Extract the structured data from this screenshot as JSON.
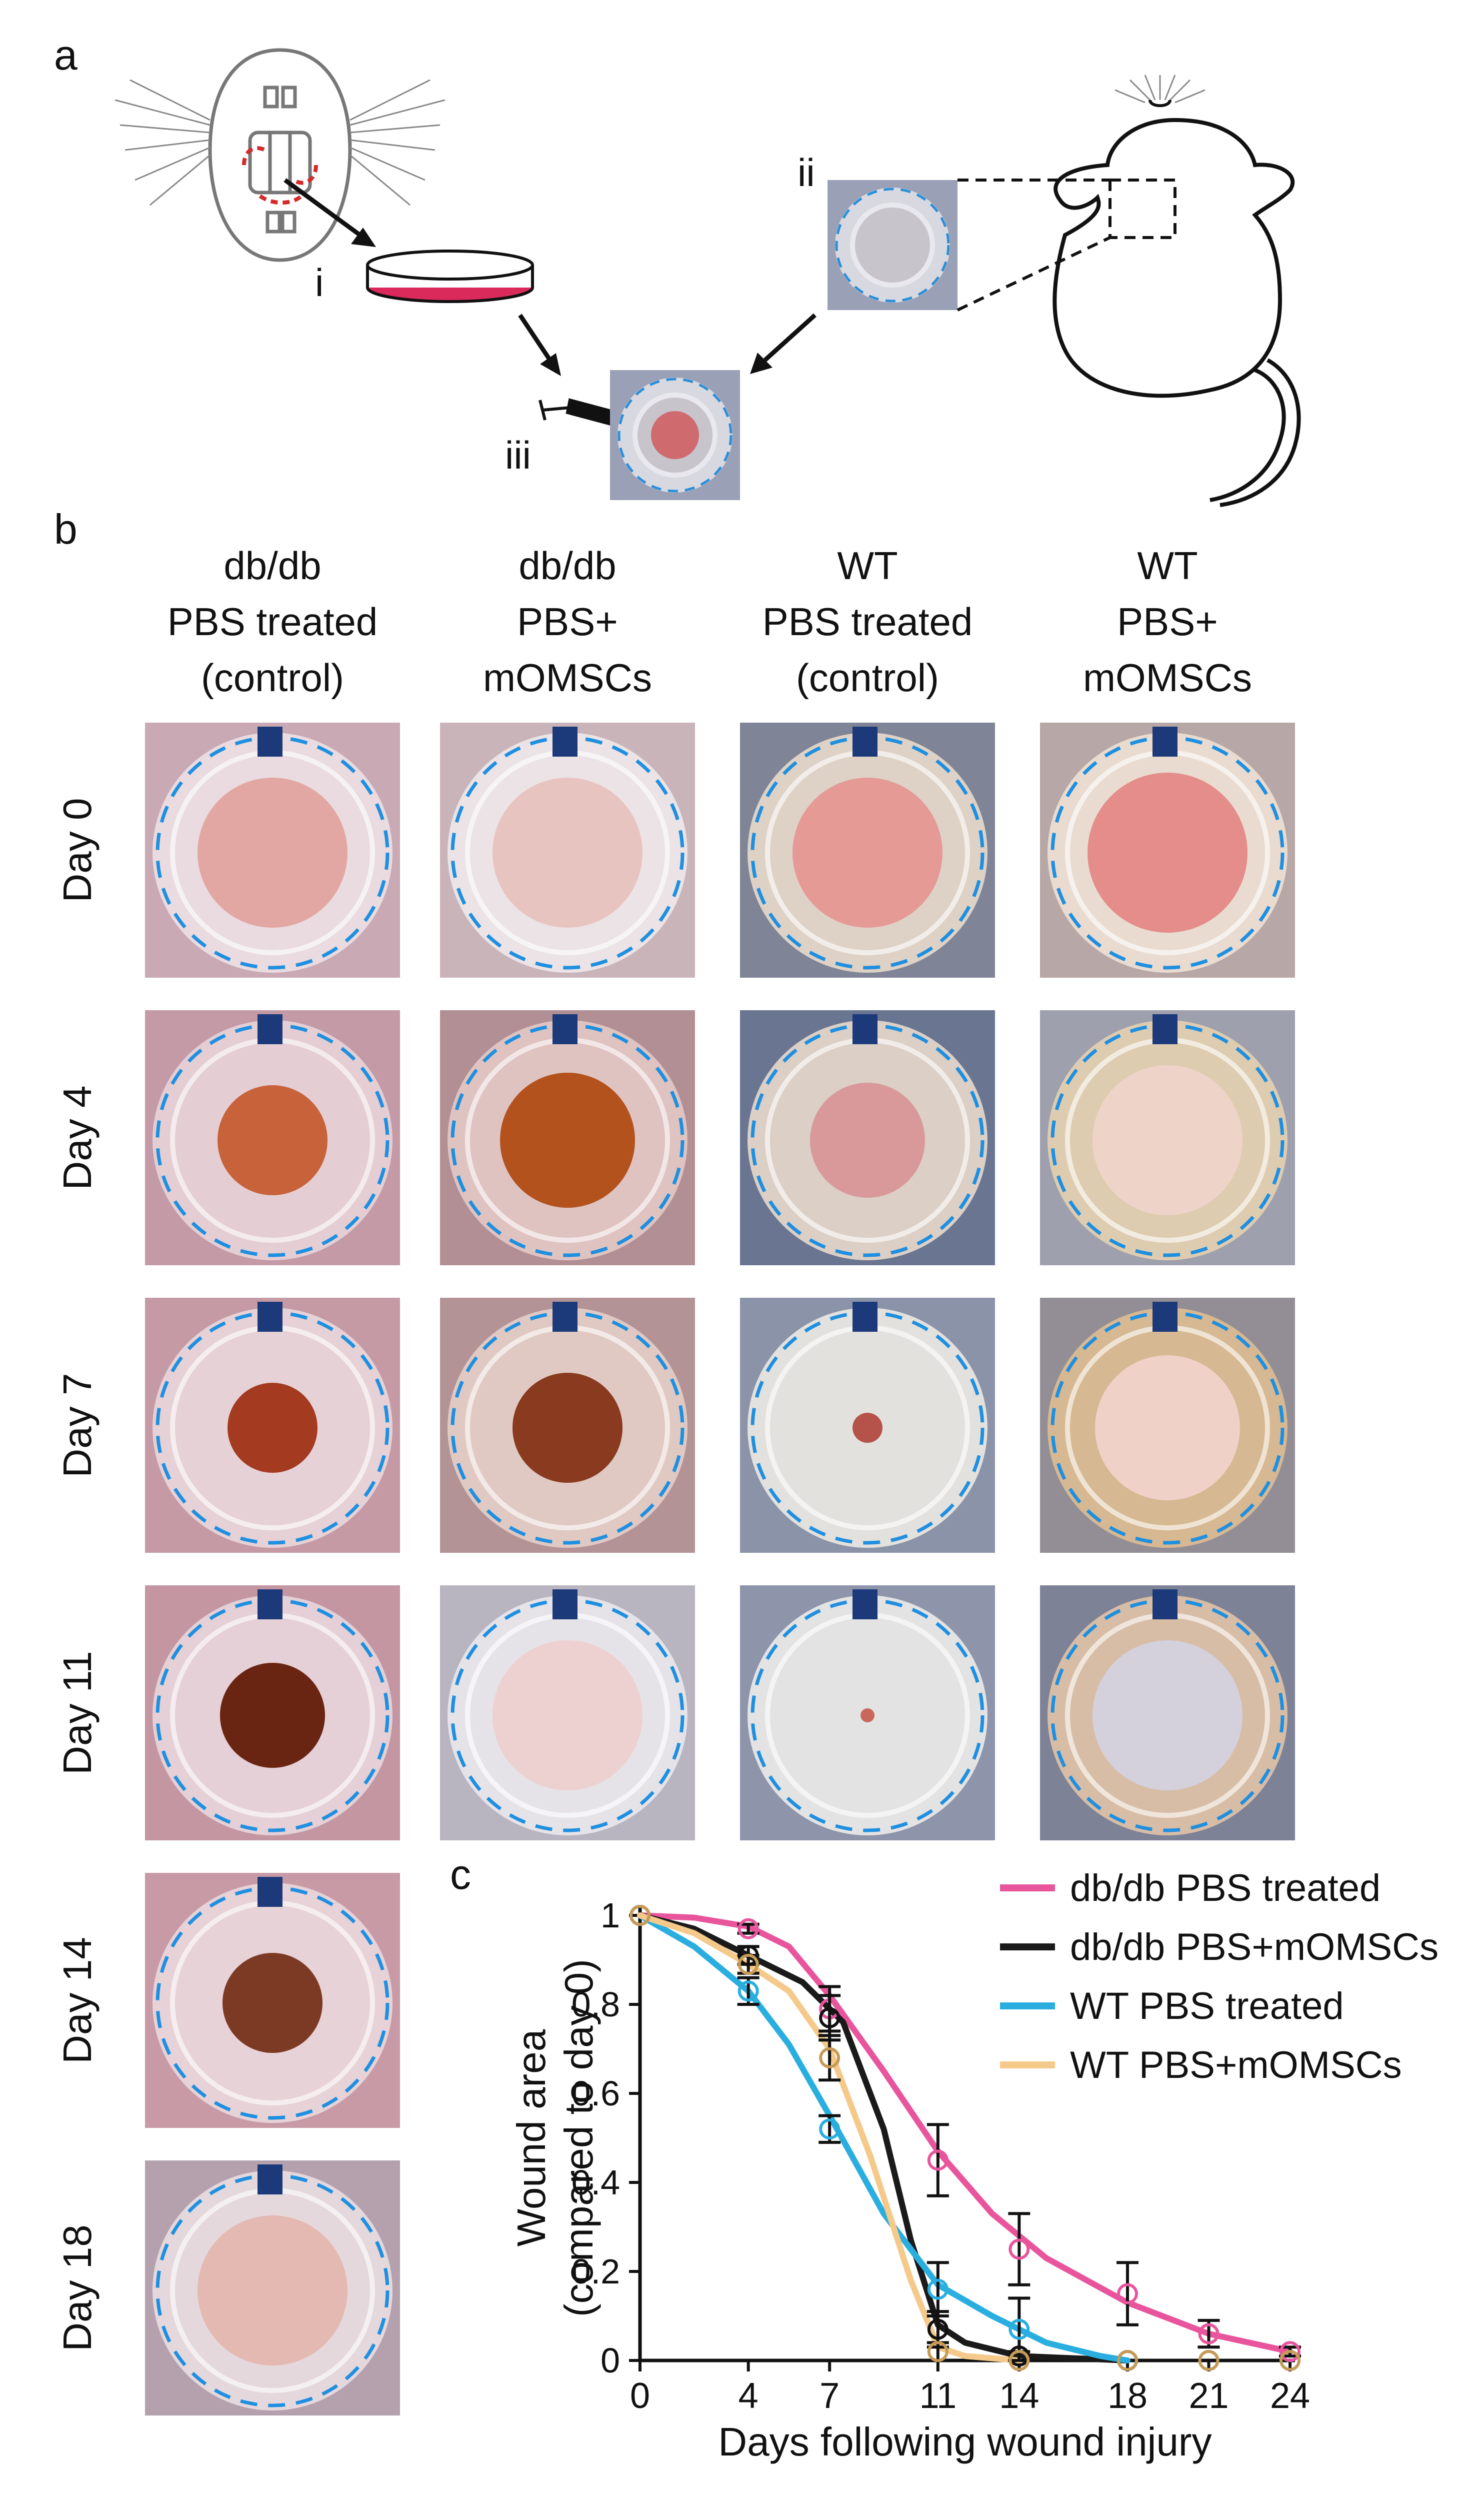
{
  "panel_a": {
    "letter": "a",
    "steps": {
      "i": "i",
      "ii": "ii",
      "iii": "iii"
    }
  },
  "panel_b": {
    "letter": "b",
    "columns": [
      {
        "lines": [
          "db/db",
          "PBS treated",
          "(control)"
        ]
      },
      {
        "lines": [
          "db/db",
          "PBS+",
          "mOMSCs"
        ]
      },
      {
        "lines": [
          "WT",
          "PBS treated",
          "(control)"
        ]
      },
      {
        "lines": [
          "WT",
          "PBS+",
          "mOMSCs"
        ]
      }
    ],
    "rows": [
      "Day 0",
      "Day 4",
      "Day 7",
      "Day 11",
      "Day 14",
      "Day 18"
    ]
  },
  "panel_c": {
    "letter": "c"
  },
  "chart_data": {
    "type": "line",
    "xlabel": "Days following wound injury",
    "ylabel_lines": [
      "Wound area",
      "(compared to day 0)"
    ],
    "x": [
      0,
      4,
      7,
      11,
      14,
      18,
      21,
      24
    ],
    "x_ticks": [
      0,
      4,
      7,
      11,
      14,
      18,
      21,
      24
    ],
    "xlim": [
      0,
      24
    ],
    "y_ticks": [
      0,
      0.2,
      0.4,
      0.6,
      0.8,
      1
    ],
    "y_tick_labels": [
      "0",
      "0.2",
      "0.4",
      "0.6",
      "0.8",
      "1"
    ],
    "ylim": [
      0,
      1
    ],
    "legend_position": "top-right",
    "series": [
      {
        "name": "db/db PBS treated",
        "color": "#e8559c",
        "x": [
          0,
          4,
          7,
          11,
          14,
          18,
          21,
          24
        ],
        "values": [
          1,
          0.97,
          0.79,
          0.45,
          0.25,
          0.15,
          0.06,
          0.02
        ],
        "errors": [
          0,
          0.01,
          0.05,
          0.08,
          0.08,
          0.07,
          0.03,
          0.01
        ],
        "fit": [
          [
            0,
            1
          ],
          [
            2,
            0.995
          ],
          [
            4,
            0.975
          ],
          [
            5.5,
            0.93
          ],
          [
            7,
            0.82
          ],
          [
            9,
            0.65
          ],
          [
            11,
            0.47
          ],
          [
            13,
            0.33
          ],
          [
            15,
            0.23
          ],
          [
            18,
            0.13
          ],
          [
            21,
            0.06
          ],
          [
            24,
            0.02
          ]
        ]
      },
      {
        "name": "db/db PBS+mOMSCs",
        "color": "#1a1a1a",
        "x": [
          0,
          4,
          7,
          11,
          14,
          18
        ],
        "values": [
          1,
          0.91,
          0.77,
          0.07,
          0.01,
          0
        ],
        "errors": [
          0,
          0.02,
          0.05,
          0.04,
          0.01,
          0
        ],
        "fit": [
          [
            0,
            1
          ],
          [
            2,
            0.97
          ],
          [
            4,
            0.91
          ],
          [
            6,
            0.85
          ],
          [
            7.5,
            0.76
          ],
          [
            9,
            0.52
          ],
          [
            10,
            0.27
          ],
          [
            11,
            0.08
          ],
          [
            12,
            0.04
          ],
          [
            14,
            0.01
          ],
          [
            18,
            0
          ]
        ]
      },
      {
        "name": "WT PBS treated",
        "color": "#2aaee0",
        "x": [
          0,
          4,
          7,
          11,
          14,
          18,
          21,
          24
        ],
        "values": [
          1,
          0.83,
          0.52,
          0.16,
          0.07,
          0,
          0,
          0
        ],
        "errors": [
          0,
          0.03,
          0.03,
          0.06,
          0.07,
          0,
          0,
          0
        ],
        "fit": [
          [
            0,
            1
          ],
          [
            2,
            0.93
          ],
          [
            4,
            0.83
          ],
          [
            5.5,
            0.71
          ],
          [
            7,
            0.55
          ],
          [
            9,
            0.33
          ],
          [
            11,
            0.17
          ],
          [
            13,
            0.1
          ],
          [
            15,
            0.04
          ],
          [
            17,
            0.01
          ],
          [
            18,
            0
          ]
        ]
      },
      {
        "name": "WT PBS+mOMSCs",
        "color": "#f5c98a",
        "x": [
          0,
          4,
          7,
          11,
          14,
          18,
          21,
          24
        ],
        "values": [
          1,
          0.89,
          0.68,
          0.02,
          0,
          0,
          0,
          0
        ],
        "errors": [
          0,
          0.02,
          0.05,
          0.02,
          0,
          0,
          0,
          0
        ],
        "fit": [
          [
            0,
            1
          ],
          [
            2,
            0.96
          ],
          [
            4,
            0.89
          ],
          [
            5.5,
            0.83
          ],
          [
            7,
            0.7
          ],
          [
            8.5,
            0.46
          ],
          [
            10,
            0.18
          ],
          [
            11,
            0.03
          ],
          [
            12,
            0.01
          ],
          [
            14,
            0
          ]
        ]
      }
    ]
  }
}
